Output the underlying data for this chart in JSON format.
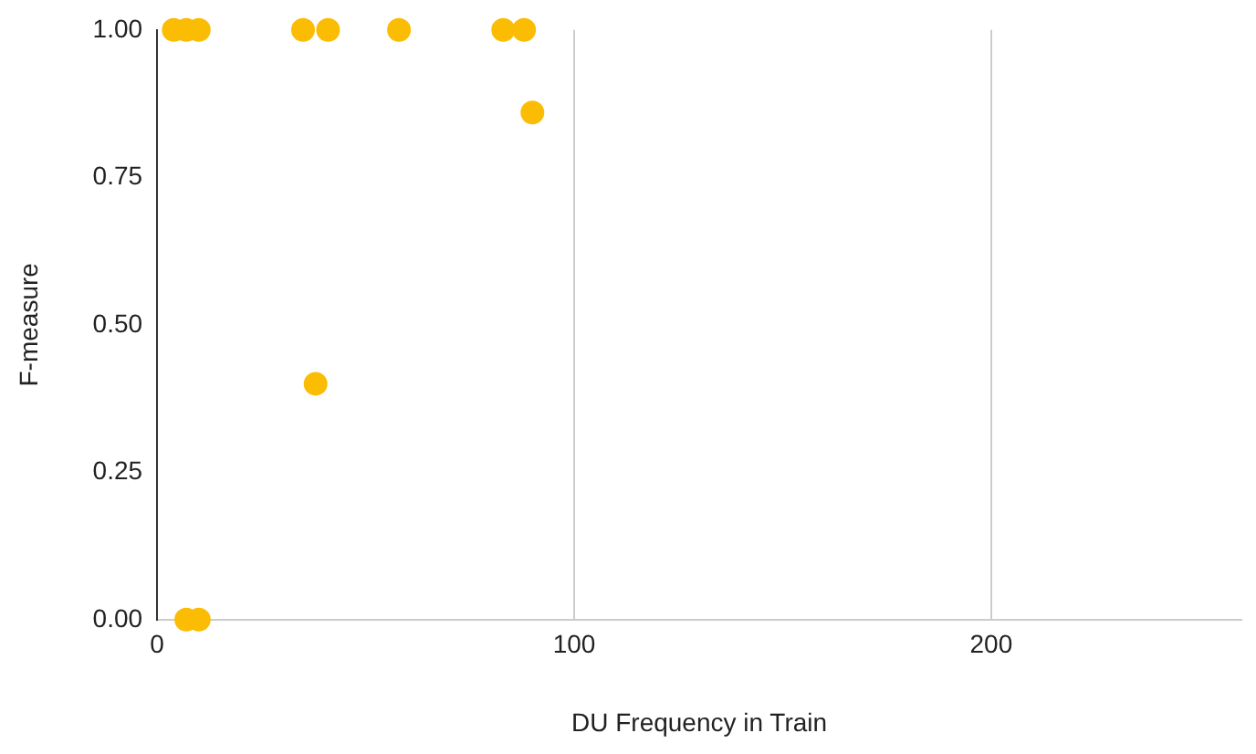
{
  "chart_data": {
    "type": "scatter",
    "xlabel": "DU Frequency in Train",
    "ylabel": "F-measure",
    "x": [
      4,
      7,
      10,
      35,
      41,
      58,
      83,
      88,
      90,
      38,
      7,
      10
    ],
    "values": [
      1,
      1,
      1,
      1,
      1,
      1,
      1,
      1,
      0.86,
      0.4,
      0,
      0
    ],
    "color": "#fbbc04",
    "marker": "circle",
    "xlim": [
      0,
      260
    ],
    "xticks": [
      0,
      100,
      200
    ],
    "ylim": [
      0,
      1
    ],
    "yticks": [
      {
        "value": 0,
        "label": "0.00"
      },
      {
        "value": 0.25,
        "label": "0.25"
      },
      {
        "value": 0.5,
        "label": "0.50"
      },
      {
        "value": 0.75,
        "label": "0.75"
      },
      {
        "value": 1,
        "label": "1.00"
      }
    ],
    "grid": "x",
    "legend": false
  }
}
